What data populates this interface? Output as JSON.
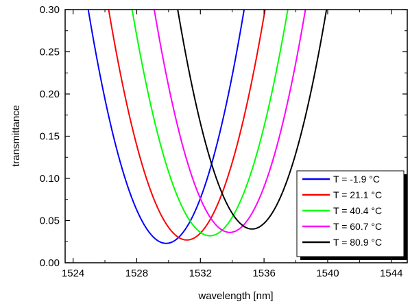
{
  "chart_data": {
    "type": "line",
    "title": "",
    "xlabel": "wavelength [nm]",
    "ylabel": "transmittance",
    "xlim": [
      1523.5,
      1545
    ],
    "ylim": [
      0,
      0.3
    ],
    "x_ticks": [
      1524,
      1528,
      1532,
      1536,
      1540,
      1544
    ],
    "y_ticks": [
      0.0,
      0.05,
      0.1,
      0.15,
      0.2,
      0.25,
      0.3
    ],
    "x_tick_labels": [
      "1524",
      "1528",
      "1532",
      "1536",
      "1540",
      "1544"
    ],
    "y_tick_labels": [
      "0.00",
      "0.05",
      "0.10",
      "0.15",
      "0.20",
      "0.25",
      "0.30"
    ],
    "grid": false,
    "legend_position": "bottom-right",
    "series": [
      {
        "name": "T = -1.9 °C",
        "color": "#0000ff",
        "x_min": 1529.85,
        "y_min": 0.023,
        "width": 0.01155
      },
      {
        "name": "T = 21.1 °C",
        "color": "#ff0000",
        "x_min": 1531.15,
        "y_min": 0.027,
        "width": 0.0113
      },
      {
        "name": "T = 40.4 °C",
        "color": "#00ff00",
        "x_min": 1532.6,
        "y_min": 0.032,
        "width": 0.0112
      },
      {
        "name": "T = 60.7 °C",
        "color": "#ff00ff",
        "x_min": 1533.85,
        "y_min": 0.036,
        "width": 0.0117
      },
      {
        "name": "T = 80.9 °C",
        "color": "#000000",
        "x_min": 1535.25,
        "y_min": 0.04,
        "width": 0.0119
      }
    ]
  }
}
